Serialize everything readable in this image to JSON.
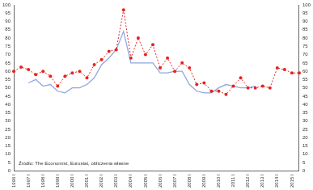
{
  "chart_data": {
    "type": "line",
    "annotation": "Źródło: The Economist, Eurostat, obliczenia własne",
    "categories": [
      "1996 I",
      null,
      "1997 I",
      null,
      "1998 I",
      null,
      "1999 I",
      null,
      "2000 I",
      null,
      "2001 I",
      null,
      "2002 I",
      null,
      "2003 I",
      null,
      "2004 I",
      null,
      "2005 I",
      null,
      "2006 I",
      null,
      "2007 I",
      null,
      "2008 I",
      null,
      "2009 I",
      null,
      "2010 I",
      null,
      "2011 I",
      null,
      "2012 I",
      null,
      "2013 I",
      null,
      "2014 I",
      null,
      "2015 I",
      null
    ],
    "series": [
      {
        "color": "#e8211d",
        "line_style": "dotted",
        "marker": "circle",
        "values": [
          60,
          62.5,
          61,
          58,
          60,
          57,
          51,
          57,
          59,
          60,
          56,
          64,
          67,
          72,
          73,
          97,
          68,
          80,
          70,
          76,
          62,
          68,
          60,
          65,
          62,
          52,
          53,
          48,
          48,
          46,
          51,
          56,
          50,
          50,
          51,
          50,
          62,
          61,
          59,
          59
        ]
      },
      {
        "color": "#8fa8e0",
        "line_style": "solid",
        "marker": "none",
        "values": [
          null,
          null,
          53,
          55,
          51,
          52,
          48,
          47,
          50,
          50,
          52,
          56,
          64,
          68,
          73,
          84,
          65,
          65,
          65,
          65,
          59,
          59,
          60,
          60,
          52,
          48,
          47,
          47,
          50,
          52,
          51,
          50,
          50,
          51,
          null,
          null,
          null,
          null,
          null,
          null
        ]
      }
    ],
    "ylim": [
      0,
      100
    ],
    "yticks": [
      0,
      5,
      10,
      15,
      20,
      25,
      30,
      35,
      40,
      45,
      50,
      55,
      60,
      65,
      70,
      75,
      80,
      85,
      90,
      95,
      100
    ],
    "y2lim": [
      0,
      100
    ],
    "y2ticks": [
      0,
      5,
      10,
      15,
      20,
      25,
      30,
      35,
      40,
      45,
      50,
      55,
      60,
      65,
      70,
      75,
      80,
      85,
      90,
      95,
      100
    ],
    "grid": false
  }
}
